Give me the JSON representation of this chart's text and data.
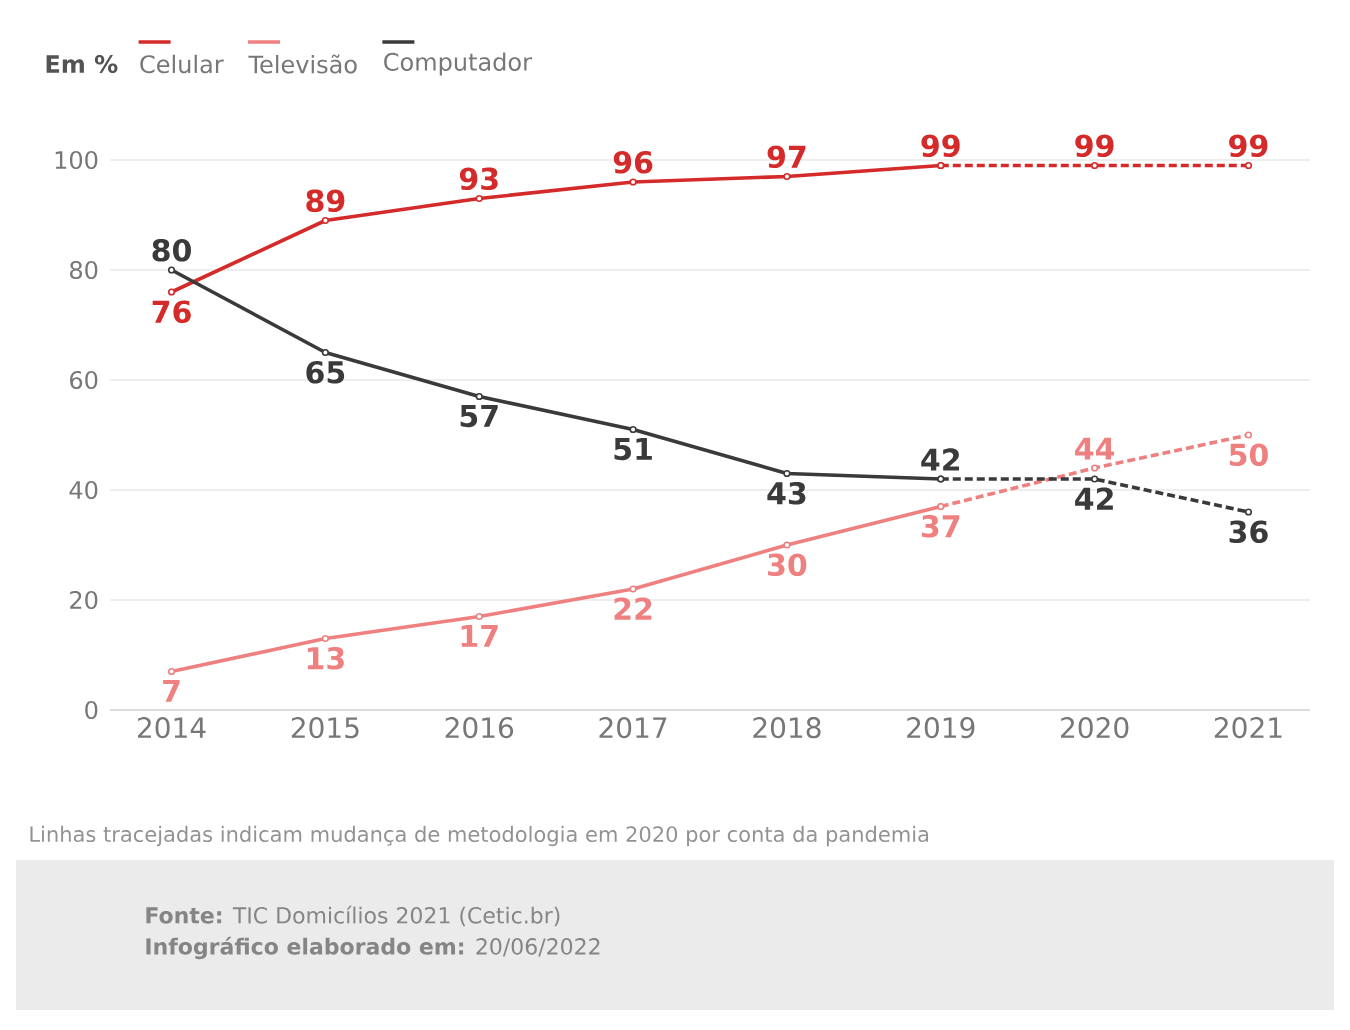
{
  "chart_data": {
    "type": "line",
    "legend_title": "Em %",
    "legend": "top left",
    "categories": [
      "2014",
      "2015",
      "2016",
      "2017",
      "2018",
      "2019",
      "2020",
      "2021"
    ],
    "series": [
      {
        "name": "Celular",
        "color": "#d42a2a",
        "line_style": "solid",
        "values": [
          76,
          89,
          93,
          96,
          97,
          99,
          null,
          null
        ],
        "value_labels": [
          "76",
          "89",
          "93",
          "96",
          "97",
          "99",
          null,
          null
        ]
      },
      {
        "name": "Televisão",
        "color": "#ef8080",
        "line_style": "solid",
        "values": [
          7,
          13,
          17,
          22,
          30,
          37,
          null,
          null
        ],
        "value_labels": [
          "7",
          "13",
          "17",
          "22",
          "30",
          "37",
          null,
          null
        ]
      },
      {
        "name": "Computador",
        "color": "#3a3a3a",
        "line_style": "solid",
        "values": [
          80,
          65,
          57,
          51,
          43,
          42,
          null,
          null
        ],
        "value_labels": [
          "80",
          "65",
          "57",
          "51",
          "43",
          "42",
          null,
          null
        ]
      },
      {
        "color": "#d42a2a",
        "line_style": "dashed",
        "values": [
          null,
          null,
          null,
          null,
          null,
          99,
          99,
          99
        ],
        "value_labels": [
          null,
          null,
          null,
          null,
          null,
          null,
          "99",
          "99"
        ]
      },
      {
        "color": "#ef8080",
        "line_style": "dashed",
        "values": [
          null,
          null,
          null,
          null,
          null,
          37,
          44,
          50
        ],
        "value_labels": [
          null,
          null,
          null,
          null,
          null,
          null,
          "44",
          "50"
        ]
      },
      {
        "color": "#3a3a3a",
        "line_style": "dashed",
        "values": [
          null,
          null,
          null,
          null,
          null,
          42,
          42,
          36
        ],
        "value_labels": [
          null,
          null,
          null,
          null,
          null,
          null,
          "42",
          "36"
        ]
      }
    ],
    "ylim": [
      0,
      100
    ],
    "yticks": [
      0,
      20,
      40,
      60,
      80,
      100
    ],
    "grid": "y",
    "marker": "circle",
    "annotations": [
      "Linhas tracejadas indicam mudança de metodologia em 2020 por conta da pandemia",
      "**Fonte:** TIC Domicílios 2021 (Cetic.br)",
      "**Infográfico elaborado em:** 20/06/2022"
    ]
  }
}
